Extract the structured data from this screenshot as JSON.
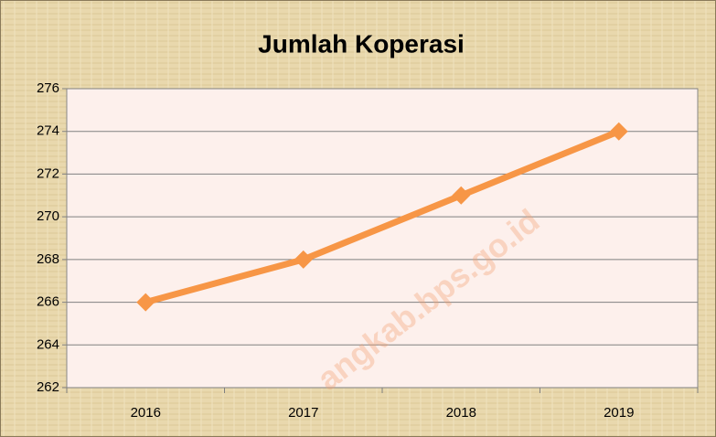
{
  "chart_data": {
    "type": "line",
    "title": "Jumlah Koperasi",
    "categories": [
      "2016",
      "2017",
      "2018",
      "2019"
    ],
    "series": [
      {
        "name": "Jumlah Koperasi",
        "color": "#f79646",
        "values": [
          266,
          268,
          271,
          274
        ]
      }
    ],
    "ylim": [
      262,
      276
    ],
    "yticks": [
      262,
      264,
      266,
      268,
      270,
      272,
      274,
      276
    ],
    "grid": true,
    "watermark": "angkab.bps.go.id"
  }
}
